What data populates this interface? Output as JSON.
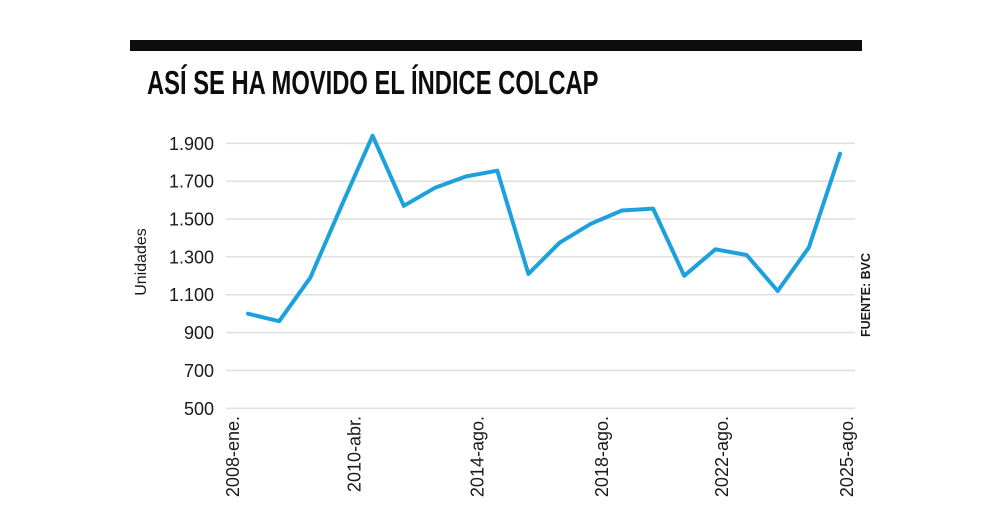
{
  "header": {
    "title": "ASÍ SE HA MOVIDO EL ÍNDICE COLCAP"
  },
  "source_note": "FUENTE: BVC",
  "chart_data": {
    "type": "line",
    "title": "ASÍ SE HA MOVIDO EL ÍNDICE COLCAP",
    "xlabel": "",
    "ylabel": "Unidades",
    "ylim": [
      500,
      1960
    ],
    "grid": "horizontal-only",
    "legend_position": "none",
    "line_color": "#1da1dc",
    "grid_color": "#e0e0e0",
    "text_color": "#1a1a1a",
    "y_ticks": [
      {
        "value": 1900,
        "label": "1.900"
      },
      {
        "value": 1700,
        "label": "1.700"
      },
      {
        "value": 1500,
        "label": "1.500"
      },
      {
        "value": 1300,
        "label": "1.300"
      },
      {
        "value": 1100,
        "label": "1.100"
      },
      {
        "value": 900,
        "label": "900"
      },
      {
        "value": 700,
        "label": "700"
      },
      {
        "value": 500,
        "label": "500"
      }
    ],
    "x_ticks": [
      {
        "pos": -0.5,
        "label": "2008-ene."
      },
      {
        "pos": 3.4,
        "label": "2010-abr."
      },
      {
        "pos": 7.35,
        "label": "2014-ago."
      },
      {
        "pos": 11.35,
        "label": "2018-ago."
      },
      {
        "pos": 15.2,
        "label": "2022-ago."
      },
      {
        "pos": 19.2,
        "label": "2025-ago."
      }
    ],
    "series": [
      {
        "name": "Índice COLCAP (unidades)",
        "values": [
          1000,
          960,
          1190,
          1570,
          1940,
          1570,
          1665,
          1725,
          1755,
          1210,
          1375,
          1475,
          1545,
          1555,
          1200,
          1340,
          1310,
          1120,
          1350,
          1845
        ]
      }
    ],
    "source": "FUENTE: BVC"
  }
}
